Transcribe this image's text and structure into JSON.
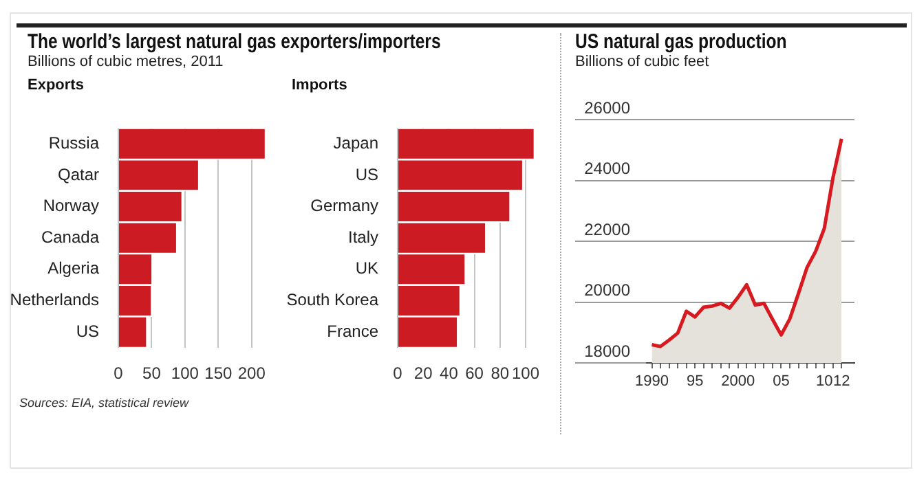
{
  "chart_data": [
    {
      "type": "bar",
      "orientation": "horizontal",
      "title": "The world’s largest natural gas exporters/importers",
      "subtitle": "Billions of cubic metres, 2011",
      "annotations": [
        "Exports",
        "Sources: EIA, statistical review"
      ],
      "categories": [
        "Russia",
        "Qatar",
        "Norway",
        "Canada",
        "Algeria",
        "Netherlands",
        "US"
      ],
      "values": [
        221,
        121,
        96,
        88,
        51,
        50,
        43
      ],
      "color": "#cc1b22",
      "xlim": [
        0,
        225
      ],
      "xticks": [
        0,
        50,
        100,
        150,
        200
      ],
      "grid": "x"
    },
    {
      "type": "bar",
      "orientation": "horizontal",
      "title": "Imports",
      "categories": [
        "Japan",
        "US",
        "Germany",
        "Italy",
        "UK",
        "South Korea",
        "France"
      ],
      "values": [
        107,
        98,
        88,
        69,
        53,
        49,
        47
      ],
      "color": "#cc1b22",
      "xlim": [
        0,
        110
      ],
      "xticks": [
        0,
        20,
        40,
        60,
        80,
        100
      ],
      "grid": "x"
    },
    {
      "type": "area",
      "title": "US natural gas production",
      "subtitle": "Billions of cubic feet",
      "x": [
        1990,
        1991,
        1992,
        1993,
        1994,
        1995,
        1996,
        1997,
        1998,
        1999,
        2000,
        2001,
        2002,
        2003,
        2004,
        2005,
        2006,
        2007,
        2008,
        2009,
        2010,
        2011,
        2012
      ],
      "series": [
        {
          "color": "#d71920",
          "values": [
            18600,
            18540,
            18750,
            18980,
            19700,
            19510,
            19830,
            19870,
            19960,
            19800,
            20160,
            20570,
            19900,
            19960,
            19430,
            18920,
            19450,
            20280,
            21140,
            21670,
            22420,
            24080,
            25370
          ]
        }
      ],
      "xlim": [
        1989.4,
        2013.5
      ],
      "xticks": [
        {
          "value": 1990,
          "label": "1990"
        },
        {
          "value": 1991,
          "label": null
        },
        {
          "value": 1992,
          "label": null
        },
        {
          "value": 1993,
          "label": null
        },
        {
          "value": 1994,
          "label": null
        },
        {
          "value": 1995,
          "label": "95"
        },
        {
          "value": 1996,
          "label": null
        },
        {
          "value": 1997,
          "label": null
        },
        {
          "value": 1998,
          "label": null
        },
        {
          "value": 1999,
          "label": null
        },
        {
          "value": 2000,
          "label": "2000"
        },
        {
          "value": 2001,
          "label": null
        },
        {
          "value": 2002,
          "label": null
        },
        {
          "value": 2003,
          "label": null
        },
        {
          "value": 2004,
          "label": null
        },
        {
          "value": 2005,
          "label": "05"
        },
        {
          "value": 2006,
          "label": null
        },
        {
          "value": 2007,
          "label": null
        },
        {
          "value": 2008,
          "label": null
        },
        {
          "value": 2009,
          "label": null
        },
        {
          "value": 2010,
          "label": "10"
        },
        {
          "value": 2011,
          "label": null
        },
        {
          "value": 2012,
          "label": "12"
        }
      ],
      "ylim": [
        18000,
        26000
      ],
      "yticks": [
        18000,
        20000,
        22000,
        24000,
        26000
      ],
      "grid": "y"
    }
  ]
}
